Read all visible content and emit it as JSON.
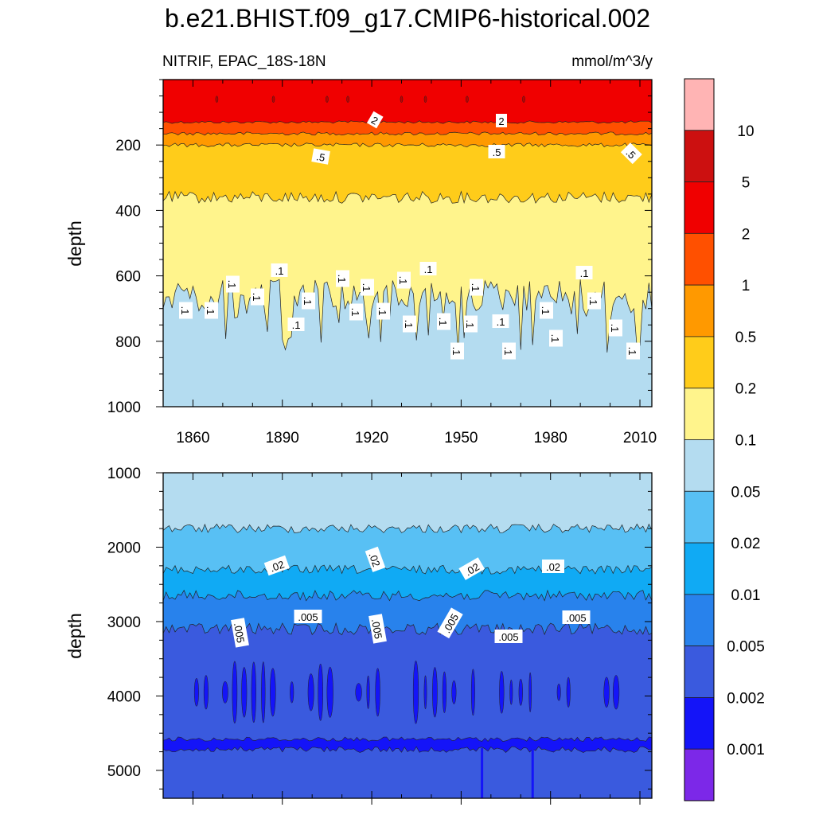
{
  "figure": {
    "title": "b.e21.BHIST.f09_g17.CMIP6-historical.002",
    "left_label": "NITRIF, EPAC_18S-18N",
    "right_label": "mmol/m^3/y"
  },
  "chart_data": [
    {
      "type": "heatmap",
      "title": "b.e21.BHIST.f09_g17.CMIP6-historical.002",
      "subtitle_left": "NITRIF, EPAC_18S-18N",
      "subtitle_right": "mmol/m^3/y",
      "xlabel": "",
      "ylabel": "depth",
      "xlim": [
        1850,
        2014
      ],
      "ylim": [
        1000,
        0
      ],
      "x_ticks": [
        1860,
        1890,
        1920,
        1950,
        1980,
        2010
      ],
      "y_ticks": [
        200,
        400,
        600,
        800,
        1000
      ],
      "depth_reversed": true,
      "contour_bands_approx_depth": [
        {
          "range": "> 2",
          "depth_top": 0,
          "depth_bottom": 130
        },
        {
          "range": "1 - 2",
          "depth_top": 130,
          "depth_bottom": 165
        },
        {
          "range": "0.5 - 1",
          "depth_top": 165,
          "depth_bottom": 200
        },
        {
          "range": "0.2 - 0.5",
          "depth_top": 200,
          "depth_bottom": 360
        },
        {
          "range": "0.1 - 0.2",
          "depth_top": 360,
          "depth_bottom": 700
        },
        {
          "range": "0.05 - 0.1",
          "depth_top": 700,
          "depth_bottom": 1000
        }
      ],
      "contour_labels": [
        ".1",
        ".1",
        ".1",
        ".1",
        ".1",
        ".1",
        ".1",
        ".1",
        ".1",
        ".1",
        ".1",
        ".1",
        ".1",
        ".1",
        ".1",
        ".1",
        ".1",
        ".1",
        ".1",
        ".1",
        ".1",
        ".1",
        ".1",
        ".1",
        ".1",
        ".1",
        ".5",
        ".5",
        ".5",
        "2",
        "2"
      ]
    },
    {
      "type": "heatmap",
      "xlabel": "",
      "ylabel": "depth",
      "xlim": [
        1850,
        2014
      ],
      "ylim": [
        5375,
        1000
      ],
      "y_ticks": [
        1000,
        2000,
        3000,
        4000,
        5000
      ],
      "depth_reversed": true,
      "contour_bands_approx_depth": [
        {
          "range": "0.02 - 0.05",
          "depth_top": 1000,
          "depth_bottom": 1750
        },
        {
          "range": "0.01 - 0.02",
          "depth_top": 1750,
          "depth_bottom": 2300
        },
        {
          "range": "0.005 - 0.01",
          "depth_top": 2300,
          "depth_bottom": 2650
        },
        {
          "range": "0.002 - 0.005",
          "depth_top": 2650,
          "depth_bottom": 3100
        },
        {
          "range": "0.001 - 0.002",
          "depth_top": 3100,
          "depth_bottom": 5375
        }
      ],
      "contour_labels": [
        ".02",
        ".02",
        ".02",
        ".02",
        ".005",
        ".005",
        ".005",
        ".005",
        ".005",
        ".005"
      ]
    }
  ],
  "colorbar": {
    "labels": [
      "10",
      "5",
      "2",
      "1",
      "0.5",
      "0.2",
      "0.1",
      "0.05",
      "0.02",
      "0.01",
      "0.005",
      "0.002",
      "0.001"
    ],
    "colors": [
      "#ffb4b4",
      "#cc1010",
      "#f00000",
      "#ff5000",
      "#ff9900",
      "#ffcc1a",
      "#fff48c",
      "#b4dcf0",
      "#58c0f4",
      "#10aaf4",
      "#2882ec",
      "#3a5ade",
      "#1414f8",
      "#7c28e8"
    ]
  }
}
